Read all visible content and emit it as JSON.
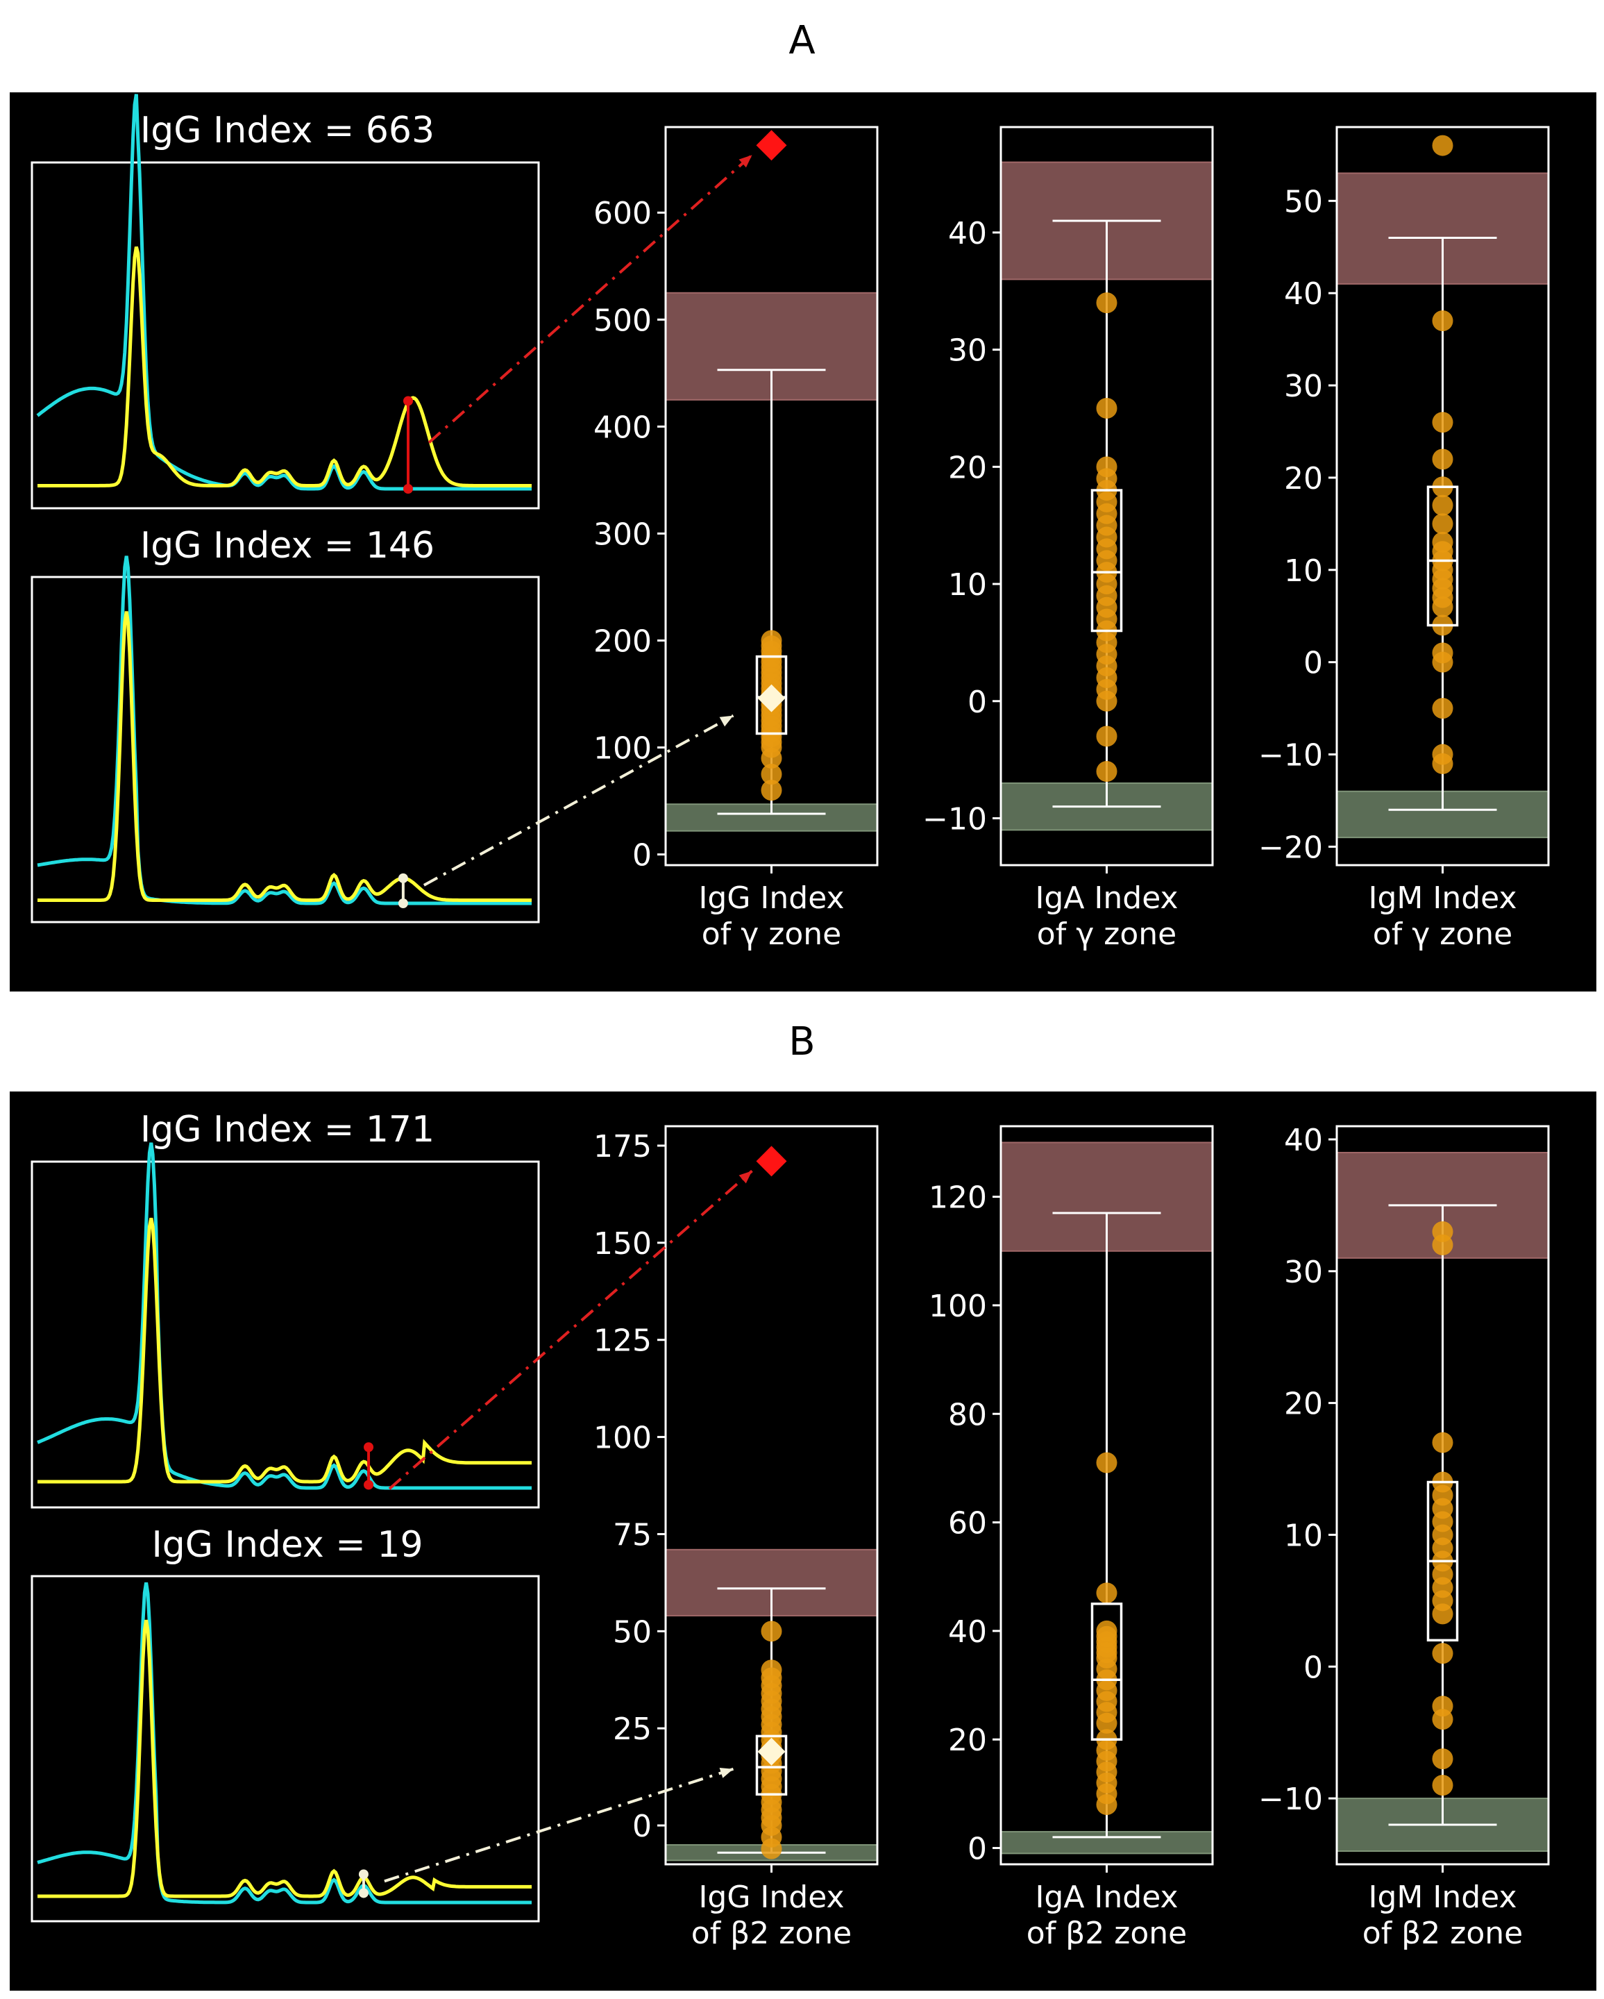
{
  "panels": [
    {
      "label": "A",
      "traces": [
        {
          "title": "IgG Index = 663",
          "marker_color": "#e01010"
        },
        {
          "title": "IgG Index = 146",
          "marker_color": "#f3f0d8"
        }
      ],
      "highlight": {
        "value": 663,
        "color": "#ff1a1a"
      }
    },
    {
      "label": "B",
      "traces": [
        {
          "title": "IgG Index = 171",
          "marker_color": "#e01010"
        },
        {
          "title": "IgG Index = 19",
          "marker_color": "#f3f0d8"
        }
      ],
      "highlight": {
        "value": 171,
        "color": "#ff1a1a"
      }
    }
  ],
  "colors": {
    "sample_curve": "#ffff33",
    "reference_curve": "#22dde0",
    "points": "#e89a10",
    "upper_band": "#7a4f4f",
    "lower_band": "#5b6d56",
    "box": "#ffffff"
  },
  "chart_data": [
    {
      "type": "box",
      "panel": "A",
      "xlabel": [
        "IgG Index",
        "of γ zone"
      ],
      "ylim": [
        -10,
        680
      ],
      "yticks": [
        0,
        100,
        200,
        300,
        400,
        500,
        600
      ],
      "box": {
        "q1": 113,
        "median": 147,
        "q3": 185,
        "whisker_low": 38,
        "whisker_high": 453
      },
      "upper_band": [
        425,
        525
      ],
      "lower_band": [
        22,
        47
      ],
      "points": [
        200,
        195,
        190,
        185,
        180,
        175,
        170,
        165,
        160,
        155,
        150,
        145,
        140,
        135,
        130,
        125,
        120,
        115,
        110,
        105,
        100,
        90,
        75,
        60
      ],
      "mean": 146,
      "highlight": 663
    },
    {
      "type": "box",
      "panel": "A",
      "xlabel": [
        "IgA Index",
        "of γ zone"
      ],
      "ylim": [
        -14,
        49
      ],
      "yticks": [
        -10,
        0,
        10,
        20,
        30,
        40
      ],
      "box": {
        "q1": 6,
        "median": 11,
        "q3": 18,
        "whisker_low": -9,
        "whisker_high": 41
      },
      "upper_band": [
        36,
        46
      ],
      "lower_band": [
        -11,
        -7
      ],
      "points": [
        34,
        25,
        20,
        19,
        18,
        17,
        16,
        15,
        14,
        13,
        12,
        11,
        10,
        9,
        8,
        7,
        6,
        5,
        4,
        3,
        2,
        1,
        0,
        -3,
        -6
      ]
    },
    {
      "type": "box",
      "panel": "A",
      "xlabel": [
        "IgM Index",
        "of γ zone"
      ],
      "ylim": [
        -22,
        58
      ],
      "yticks": [
        -20,
        -10,
        0,
        10,
        20,
        30,
        40,
        50
      ],
      "box": {
        "q1": 4,
        "median": 11,
        "q3": 19,
        "whisker_low": -16,
        "whisker_high": 46
      },
      "upper_band": [
        41,
        53
      ],
      "lower_band": [
        -19,
        -14
      ],
      "points": [
        56,
        37,
        26,
        22,
        19,
        17,
        15,
        13,
        12,
        11,
        10,
        9,
        8,
        7,
        6,
        4,
        1,
        0,
        -5,
        -10,
        -11
      ]
    },
    {
      "type": "box",
      "panel": "B",
      "xlabel": [
        "IgG Index",
        "of β2 zone"
      ],
      "ylim": [
        -10,
        180
      ],
      "yticks": [
        0,
        25,
        50,
        75,
        100,
        125,
        150,
        175
      ],
      "box": {
        "q1": 8,
        "median": 15,
        "q3": 23,
        "whisker_low": -7,
        "whisker_high": 61
      },
      "upper_band": [
        54,
        71
      ],
      "lower_band": [
        -9,
        -5
      ],
      "points": [
        50,
        40,
        38,
        36,
        34,
        32,
        30,
        28,
        26,
        24,
        22,
        20,
        18,
        16,
        14,
        12,
        10,
        8,
        6,
        4,
        2,
        0,
        -3,
        -6
      ],
      "mean": 19,
      "highlight": 171
    },
    {
      "type": "box",
      "panel": "B",
      "xlabel": [
        "IgA Index",
        "of β2 zone"
      ],
      "ylim": [
        -3,
        133
      ],
      "yticks": [
        0,
        20,
        40,
        60,
        80,
        100,
        120
      ],
      "box": {
        "q1": 20,
        "median": 31,
        "q3": 45,
        "whisker_low": 2,
        "whisker_high": 117
      },
      "upper_band": [
        110,
        130
      ],
      "lower_band": [
        -1,
        3
      ],
      "points": [
        71,
        47,
        40,
        39,
        38,
        37,
        36,
        35,
        33,
        31,
        29,
        27,
        25,
        23,
        20,
        18,
        16,
        14,
        12,
        10,
        8
      ]
    },
    {
      "type": "box",
      "panel": "B",
      "xlabel": [
        "IgM Index",
        "of β2 zone"
      ],
      "ylim": [
        -15,
        41
      ],
      "yticks": [
        -10,
        0,
        10,
        20,
        30,
        40
      ],
      "box": {
        "q1": 2,
        "median": 8,
        "q3": 14,
        "whisker_low": -12,
        "whisker_high": 35
      },
      "upper_band": [
        31,
        39
      ],
      "lower_band": [
        -14,
        -10
      ],
      "points": [
        33,
        32,
        17,
        14,
        13,
        12,
        11,
        10,
        9,
        8,
        7,
        6,
        5,
        4,
        1,
        -3,
        -4,
        -7,
        -9
      ]
    }
  ]
}
